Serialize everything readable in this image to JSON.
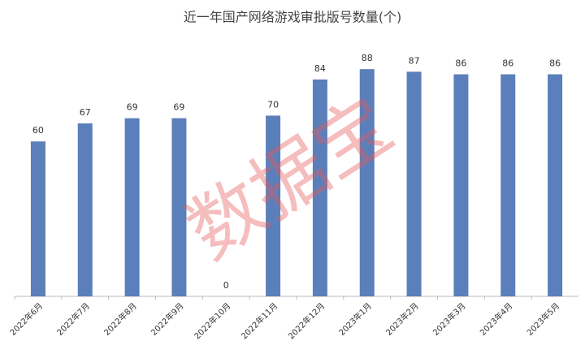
{
  "chart_data": {
    "type": "bar",
    "title": "近一年国产网络游戏审批版号数量(个)",
    "categories": [
      "2022年6月",
      "2022年7月",
      "2022年8月",
      "2022年9月",
      "2022年10月",
      "2022年11月",
      "2022年12月",
      "2023年1月",
      "2023年2月",
      "2023年3月",
      "2023年4月",
      "2023年5月"
    ],
    "values": [
      60,
      67,
      69,
      69,
      0,
      70,
      84,
      88,
      87,
      86,
      86,
      86
    ],
    "color": "#5b7fba",
    "ylim": [
      0,
      100
    ],
    "watermark": "数据宝"
  }
}
